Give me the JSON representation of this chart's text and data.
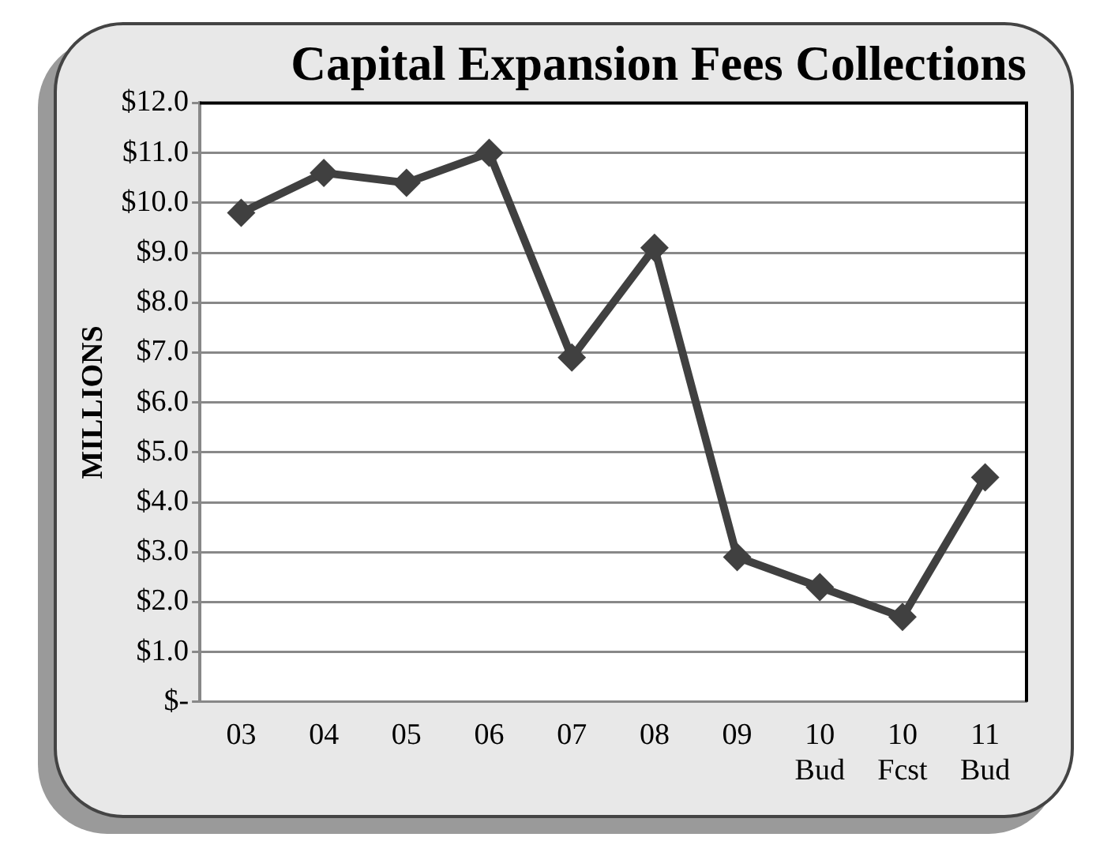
{
  "chart_data": {
    "type": "line",
    "title": "Capital Expansion Fees Collections",
    "ylabel": "MILLIONS",
    "categories": [
      "03",
      "04",
      "05",
      "06",
      "07",
      "08",
      "09",
      "10 Bud",
      "10 Fcst",
      "11 Bud"
    ],
    "series": [
      {
        "color": "#404040",
        "values": [
          9.8,
          10.6,
          10.4,
          11.0,
          6.9,
          9.1,
          2.9,
          2.3,
          1.7,
          4.5
        ]
      }
    ],
    "ylim": [
      0,
      12
    ],
    "yticks": [
      {
        "value": 0,
        "label": "$-"
      },
      {
        "value": 1,
        "label": "$1.0"
      },
      {
        "value": 2,
        "label": "$2.0"
      },
      {
        "value": 3,
        "label": "$3.0"
      },
      {
        "value": 4,
        "label": "$4.0"
      },
      {
        "value": 5,
        "label": "$5.0"
      },
      {
        "value": 6,
        "label": "$6.0"
      },
      {
        "value": 7,
        "label": "$7.0"
      },
      {
        "value": 8,
        "label": "$8.0"
      },
      {
        "value": 9,
        "label": "$9.0"
      },
      {
        "value": 10,
        "label": "$10.0"
      },
      {
        "value": 11,
        "label": "$11.0"
      },
      {
        "value": 12,
        "label": "$12.0"
      }
    ],
    "grid": "y",
    "legend": false,
    "marker": "diamond",
    "line_style": "solid"
  }
}
